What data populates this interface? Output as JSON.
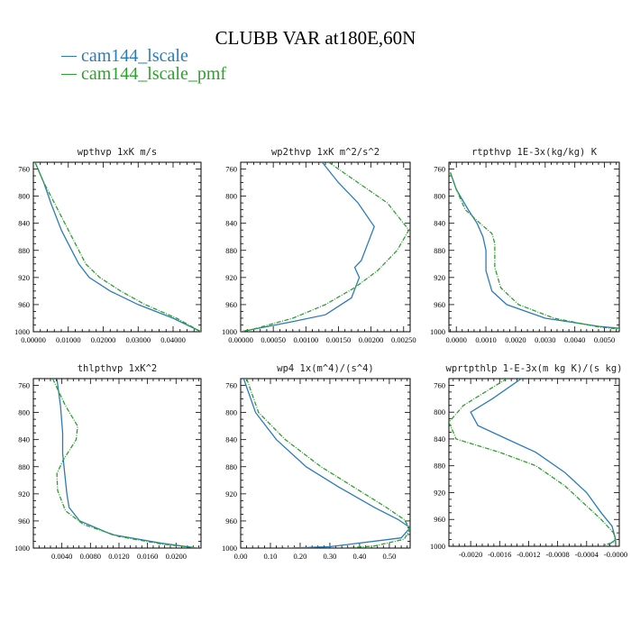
{
  "title": "CLUBB VAR at180E,60N",
  "colors": {
    "cam144_lscale": "#2b7bb9",
    "cam144_lscale_pmf": "#2ea02e"
  },
  "legend": [
    {
      "name": "cam144_lscale",
      "color": "#2b7bb9"
    },
    {
      "name": "cam144_lscale_pmf",
      "color": "#2ea02e"
    }
  ],
  "chart_data": [
    {
      "type": "line",
      "title": "wpthvp  1xK m/s",
      "xlim": [
        0,
        0.048
      ],
      "ylim": [
        1000,
        750
      ],
      "xticks": [
        0,
        0.01,
        0.02,
        0.03,
        0.04
      ],
      "xtick_labels": [
        "0.00000",
        "0.01000",
        "0.02000",
        "0.03000",
        "0.04000"
      ],
      "yticks": [
        760,
        800,
        840,
        880,
        920,
        960,
        1000
      ],
      "ytick_labels": [
        "760",
        "800",
        "840",
        "880",
        "920",
        "960",
        "1000"
      ],
      "series": [
        {
          "name": "cam144_lscale",
          "style": "solid",
          "points": [
            [
              0.0005,
              750
            ],
            [
              0.003,
              780
            ],
            [
              0.005,
              810
            ],
            [
              0.008,
              850
            ],
            [
              0.011,
              880
            ],
            [
              0.013,
              900
            ],
            [
              0.016,
              920
            ],
            [
              0.022,
              940
            ],
            [
              0.03,
              960
            ],
            [
              0.04,
              980
            ],
            [
              0.048,
              1000
            ]
          ]
        },
        {
          "name": "cam144_lscale_pmf",
          "style": "dashed",
          "points": [
            [
              0.0005,
              750
            ],
            [
              0.003,
              780
            ],
            [
              0.006,
              810
            ],
            [
              0.01,
              850
            ],
            [
              0.013,
              880
            ],
            [
              0.015,
              900
            ],
            [
              0.019,
              920
            ],
            [
              0.025,
              940
            ],
            [
              0.032,
              960
            ],
            [
              0.041,
              980
            ],
            [
              0.048,
              1000
            ]
          ]
        }
      ]
    },
    {
      "type": "line",
      "title": "wp2thvp  1xK m^2/s^2",
      "xlim": [
        0,
        0.0026
      ],
      "ylim": [
        1000,
        750
      ],
      "xticks": [
        0,
        0.0005,
        0.001,
        0.0015,
        0.002,
        0.0025
      ],
      "xtick_labels": [
        "0.00000",
        "0.00050",
        "0.00100",
        "0.00150",
        "0.00200",
        "0.00250"
      ],
      "yticks": [
        760,
        800,
        840,
        880,
        920,
        960,
        1000
      ],
      "ytick_labels": [
        "760",
        "800",
        "840",
        "880",
        "920",
        "960",
        "1000"
      ],
      "series": [
        {
          "name": "cam144_lscale",
          "style": "solid",
          "points": [
            [
              0.00125,
              750
            ],
            [
              0.0015,
              780
            ],
            [
              0.0018,
              810
            ],
            [
              0.00205,
              845
            ],
            [
              0.00195,
              870
            ],
            [
              0.00185,
              895
            ],
            [
              0.00175,
              905
            ],
            [
              0.00182,
              920
            ],
            [
              0.0017,
              950
            ],
            [
              0.0013,
              975
            ],
            [
              0.0008,
              985
            ],
            [
              0,
              1000
            ]
          ]
        },
        {
          "name": "cam144_lscale_pmf",
          "style": "dashed",
          "points": [
            [
              0.00135,
              750
            ],
            [
              0.0018,
              780
            ],
            [
              0.00225,
              810
            ],
            [
              0.00258,
              850
            ],
            [
              0.0024,
              880
            ],
            [
              0.0021,
              910
            ],
            [
              0.00175,
              935
            ],
            [
              0.0013,
              960
            ],
            [
              0.0008,
              980
            ],
            [
              0.0002,
              996
            ],
            [
              0,
              1000
            ]
          ]
        }
      ]
    },
    {
      "type": "line",
      "title": "rtpthvp  1E-3x(kg/kg) K",
      "xlim": [
        -0.00025,
        0.0055
      ],
      "ylim": [
        1000,
        750
      ],
      "xticks": [
        0,
        0.001,
        0.002,
        0.003,
        0.004,
        0.005
      ],
      "xtick_labels": [
        "0.0000",
        "0.0010",
        "0.0020",
        "0.0030",
        "0.0040",
        "0.0050"
      ],
      "yticks": [
        760,
        800,
        840,
        880,
        920,
        960,
        1000
      ],
      "ytick_labels": [
        "760",
        "800",
        "840",
        "880",
        "920",
        "960",
        "1000"
      ],
      "series": [
        {
          "name": "cam144_lscale",
          "style": "solid",
          "points": [
            [
              -0.0002,
              765
            ],
            [
              0,
              790
            ],
            [
              0.0004,
              820
            ],
            [
              0.0007,
              840
            ],
            [
              0.0009,
              860
            ],
            [
              0.001,
              880
            ],
            [
              0.001,
              910
            ],
            [
              0.0012,
              940
            ],
            [
              0.0017,
              960
            ],
            [
              0.003,
              980
            ],
            [
              0.0048,
              992
            ],
            [
              0.0055,
              995
            ]
          ]
        },
        {
          "name": "cam144_lscale_pmf",
          "style": "dashed",
          "points": [
            [
              -0.0002,
              765
            ],
            [
              0,
              790
            ],
            [
              0.0003,
              820
            ],
            [
              0.0008,
              840
            ],
            [
              0.0012,
              855
            ],
            [
              0.0013,
              870
            ],
            [
              0.0013,
              905
            ],
            [
              0.0015,
              935
            ],
            [
              0.0021,
              960
            ],
            [
              0.0033,
              980
            ],
            [
              0.0048,
              993
            ],
            [
              0.0055,
              996
            ]
          ]
        }
      ]
    },
    {
      "type": "line",
      "title": "thlpthvp  1xK^2",
      "xlim": [
        0,
        0.0235
      ],
      "ylim": [
        1000,
        750
      ],
      "xticks": [
        0.004,
        0.008,
        0.012,
        0.016,
        0.02
      ],
      "xtick_labels": [
        "0.0040",
        "0.0080",
        "0.0120",
        "0.0160",
        "0.0200"
      ],
      "yticks": [
        760,
        800,
        840,
        880,
        920,
        960,
        1000
      ],
      "ytick_labels": [
        "760",
        "800",
        "840",
        "880",
        "920",
        "960",
        "1000"
      ],
      "series": [
        {
          "name": "cam144_lscale",
          "style": "solid",
          "points": [
            [
              0.0033,
              750
            ],
            [
              0.0038,
              790
            ],
            [
              0.0041,
              830
            ],
            [
              0.0041,
              860
            ],
            [
              0.0044,
              890
            ],
            [
              0.0047,
              920
            ],
            [
              0.005,
              940
            ],
            [
              0.0065,
              960
            ],
            [
              0.011,
              980
            ],
            [
              0.018,
              993
            ],
            [
              0.023,
              1000
            ]
          ]
        },
        {
          "name": "cam144_lscale_pmf",
          "style": "dashed",
          "points": [
            [
              0.0027,
              750
            ],
            [
              0.0045,
              790
            ],
            [
              0.0062,
              820
            ],
            [
              0.006,
              840
            ],
            [
              0.0042,
              870
            ],
            [
              0.0033,
              890
            ],
            [
              0.0034,
              915
            ],
            [
              0.0045,
              945
            ],
            [
              0.007,
              965
            ],
            [
              0.012,
              983
            ],
            [
              0.018,
              994
            ],
            [
              0.0232,
              1000
            ]
          ]
        }
      ]
    },
    {
      "type": "line",
      "title": "wp4  1x(m^4)/(s^4)",
      "xlim": [
        0,
        0.57
      ],
      "ylim": [
        1000,
        750
      ],
      "xticks": [
        0,
        0.1,
        0.2,
        0.3,
        0.4,
        0.5
      ],
      "xtick_labels": [
        "0.00",
        "0.10",
        "0.20",
        "0.30",
        "0.40",
        "0.50"
      ],
      "yticks": [
        760,
        800,
        840,
        880,
        920,
        960,
        1000
      ],
      "ytick_labels": [
        "760",
        "800",
        "840",
        "880",
        "920",
        "960",
        "1000"
      ],
      "series": [
        {
          "name": "cam144_lscale",
          "style": "solid",
          "points": [
            [
              0.01,
              750
            ],
            [
              0.05,
              800
            ],
            [
              0.12,
              840
            ],
            [
              0.22,
              880
            ],
            [
              0.33,
              910
            ],
            [
              0.45,
              940
            ],
            [
              0.53,
              958
            ],
            [
              0.57,
              970
            ],
            [
              0.54,
              985
            ],
            [
              0.3,
              998
            ],
            [
              0.15,
              1000
            ]
          ]
        },
        {
          "name": "cam144_lscale_pmf",
          "style": "dashed",
          "points": [
            [
              0.02,
              750
            ],
            [
              0.06,
              800
            ],
            [
              0.15,
              840
            ],
            [
              0.27,
              880
            ],
            [
              0.38,
              910
            ],
            [
              0.49,
              940
            ],
            [
              0.55,
              958
            ],
            [
              0.57,
              972
            ],
            [
              0.55,
              987
            ],
            [
              0.45,
              997
            ],
            [
              0.35,
              1000
            ]
          ]
        }
      ]
    },
    {
      "type": "line",
      "title": "wprtpthlp  1-E-3x(m kg K)/(s kg)",
      "xlim": [
        -0.0023,
        5e-05
      ],
      "ylim": [
        1000,
        750
      ],
      "xticks": [
        -0.002,
        -0.0016,
        -0.0012,
        -0.0008,
        -0.0004,
        0
      ],
      "xtick_labels": [
        "-0.0020",
        "-0.0016",
        "-0.0012",
        "-0.0008",
        "-0.0004",
        "-0.0000"
      ],
      "yticks": [
        760,
        800,
        840,
        880,
        920,
        960,
        1000
      ],
      "ytick_labels": [
        "760",
        "800",
        "840",
        "880",
        "920",
        "960",
        "1000"
      ],
      "series": [
        {
          "name": "cam144_lscale",
          "style": "solid",
          "points": [
            [
              -0.0013,
              750
            ],
            [
              -0.0017,
              780
            ],
            [
              -0.002,
              800
            ],
            [
              -0.0019,
              820
            ],
            [
              -0.0015,
              840
            ],
            [
              -0.0011,
              860
            ],
            [
              -0.0007,
              890
            ],
            [
              -0.0004,
              920
            ],
            [
              -0.0002,
              950
            ],
            [
              -5e-05,
              970
            ],
            [
              0,
              990
            ],
            [
              -0.0001,
              998
            ]
          ]
        },
        {
          "name": "cam144_lscale_pmf",
          "style": "dashed",
          "points": [
            [
              -0.0015,
              750
            ],
            [
              -0.0021,
              790
            ],
            [
              -0.0023,
              815
            ],
            [
              -0.0022,
              840
            ],
            [
              -0.0016,
              860
            ],
            [
              -0.0011,
              880
            ],
            [
              -0.0007,
              910
            ],
            [
              -0.0004,
              940
            ],
            [
              -0.0002,
              960
            ],
            [
              -3e-05,
              980
            ],
            [
              0,
              993
            ],
            [
              -0.00015,
              998
            ]
          ]
        }
      ]
    }
  ]
}
